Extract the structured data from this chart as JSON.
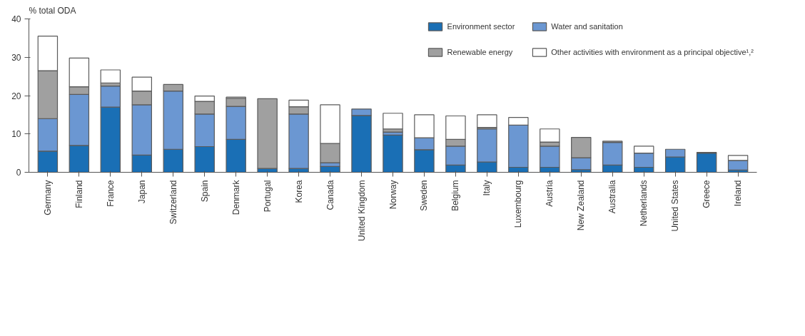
{
  "chart_data": {
    "type": "bar",
    "stacked": true,
    "ylabel": "% total ODA",
    "categories": [
      "Germany",
      "Finland",
      "France",
      "Japan",
      "Switzerland",
      "Spain",
      "Denmark",
      "Portugal",
      "Korea",
      "Canada",
      "United Kingdom",
      "Norway",
      "Sweden",
      "Belgium",
      "Italy",
      "Luxembourg",
      "Austria",
      "New Zealand",
      "Australia",
      "Netherlands",
      "United States",
      "Greece",
      "Ireland"
    ],
    "series": [
      {
        "name": "Environment sector",
        "color": "#1a6fb5",
        "values": [
          5.5,
          7,
          17,
          4.5,
          6,
          6.7,
          8.6,
          1,
          1,
          1.5,
          14.8,
          9.7,
          5.9,
          1.9,
          2.7,
          1.3,
          1.3,
          0.7,
          1.9,
          1.3,
          4,
          5,
          0.6
        ]
      },
      {
        "name": "Water and sanitation",
        "color": "#6b97d2",
        "values": [
          8.5,
          13.3,
          5.5,
          13.1,
          15.2,
          8.5,
          8.6,
          0,
          14.2,
          1,
          1.7,
          0.8,
          3.1,
          4.9,
          8.6,
          11,
          5.5,
          3.1,
          5.9,
          3.7,
          2,
          0,
          2.5
        ]
      },
      {
        "name": "Renewable energy",
        "color": "#a0a0a0",
        "values": [
          12.5,
          2,
          0.8,
          3.6,
          1.7,
          3.3,
          2.1,
          18.2,
          1.9,
          5,
          0,
          0.8,
          0,
          1.8,
          0.4,
          0,
          1.1,
          5.3,
          0.3,
          0,
          0,
          0.2,
          0
        ]
      },
      {
        "name": "Other activities with environment as a principal objective¹,²",
        "color": "#ffffff",
        "values": [
          9,
          7.5,
          3.4,
          3.6,
          0,
          1.4,
          0.3,
          0,
          1.7,
          10.1,
          0,
          4.1,
          6,
          6.1,
          3.3,
          2,
          3.4,
          0,
          0,
          1.8,
          0,
          0,
          1.3
        ]
      }
    ],
    "ylim": [
      0,
      40
    ],
    "yticks": [
      0,
      10,
      20,
      30,
      40
    ],
    "grid": false,
    "legend": "top right"
  }
}
